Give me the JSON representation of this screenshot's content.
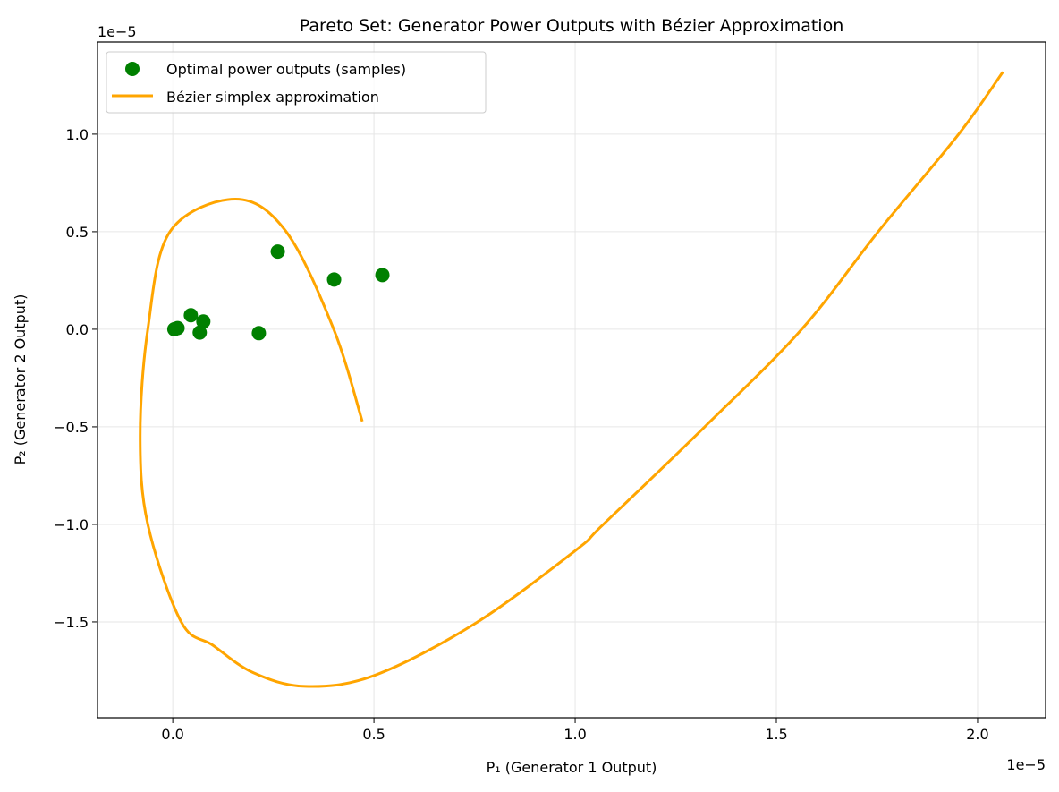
{
  "chart_data": {
    "type": "scatter",
    "title": "Pareto Set: Generator Power Outputs with Bézier Approximation",
    "xlabel": "P₁ (Generator 1 Output)",
    "ylabel": "P₂ (Generator 2 Output)",
    "x_offset_text": "1e−5",
    "y_offset_text": "1e−5",
    "xlim": [
      -0.187,
      2.169
    ],
    "ylim": [
      -1.991,
      1.472
    ],
    "xticks": [
      0.0,
      0.5,
      1.0,
      1.5,
      2.0
    ],
    "xtick_labels": [
      "0.0",
      "0.5",
      "1.0",
      "1.5",
      "2.0"
    ],
    "yticks": [
      -1.5,
      -1.0,
      -0.5,
      0.0,
      0.5,
      1.0
    ],
    "ytick_labels": [
      "−1.5",
      "−1.0",
      "−0.5",
      "0.0",
      "0.5",
      "1.0"
    ],
    "grid": true,
    "legend_position": "top-left",
    "series": [
      {
        "name": "Optimal power outputs (samples)",
        "kind": "scatter",
        "color": "#008000",
        "x": [
          0.004,
          0.012,
          0.045,
          0.076,
          0.067,
          0.214,
          0.261,
          0.401,
          0.521
        ],
        "y": [
          0.0,
          0.006,
          0.072,
          0.04,
          -0.017,
          -0.02,
          0.398,
          0.255,
          0.278
        ]
      },
      {
        "name": "Bézier simplex approximation",
        "kind": "line",
        "color": "#FFA500",
        "x": [
          0.471,
          0.4,
          0.282,
          0.156,
          -0.007,
          -0.062,
          -0.081,
          -0.062,
          0.021,
          0.1,
          0.2,
          0.329,
          0.5,
          0.75,
          1.0,
          1.07,
          1.322,
          1.563,
          1.753,
          1.953,
          2.063
        ],
        "y": [
          -0.472,
          0.0,
          0.5,
          0.667,
          0.5,
          0.0,
          -0.546,
          -1.0,
          -1.5,
          -1.62,
          -1.76,
          -1.83,
          -1.775,
          -1.51,
          -1.135,
          -1.0,
          -0.5,
          0.0,
          0.5,
          1.0,
          1.319
        ]
      }
    ]
  }
}
